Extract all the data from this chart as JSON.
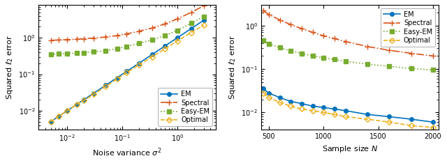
{
  "left": {
    "xlabel": "Noise variance $\\sigma^2$",
    "ylabel": "Squared $\\ell_2$ error",
    "xlim": [
      0.003,
      5.0
    ],
    "ylim": [
      0.003,
      8.0
    ],
    "sigma2": [
      0.005,
      0.007,
      0.01,
      0.015,
      0.02,
      0.03,
      0.05,
      0.08,
      0.12,
      0.2,
      0.35,
      0.6,
      1.0,
      1.8,
      3.0
    ],
    "EM": [
      0.005,
      0.007,
      0.01,
      0.015,
      0.02,
      0.03,
      0.05,
      0.08,
      0.12,
      0.2,
      0.35,
      0.6,
      1.0,
      1.8,
      3.0
    ],
    "Spectral": [
      0.85,
      0.87,
      0.89,
      0.91,
      0.94,
      0.98,
      1.05,
      1.15,
      1.28,
      1.5,
      1.85,
      2.4,
      3.3,
      5.0,
      7.5
    ],
    "EasyEM": [
      0.35,
      0.36,
      0.37,
      0.38,
      0.39,
      0.41,
      0.44,
      0.5,
      0.58,
      0.7,
      0.88,
      1.15,
      1.6,
      2.5,
      3.8
    ],
    "Optimal": [
      0.005,
      0.007,
      0.01,
      0.015,
      0.019,
      0.028,
      0.046,
      0.074,
      0.11,
      0.18,
      0.3,
      0.5,
      0.82,
      1.4,
      2.2
    ]
  },
  "right": {
    "xlabel": "Sample size $N$",
    "ylabel": "Squared $\\ell_2$ error",
    "xlim": [
      430,
      2050
    ],
    "ylim": [
      0.004,
      3.0
    ],
    "N": [
      450,
      500,
      600,
      700,
      800,
      900,
      1000,
      1100,
      1200,
      1400,
      1600,
      1800,
      2000
    ],
    "EM": [
      0.035,
      0.028,
      0.022,
      0.018,
      0.016,
      0.014,
      0.013,
      0.012,
      0.011,
      0.009,
      0.008,
      0.007,
      0.006
    ],
    "Spectral": [
      2.2,
      1.8,
      1.35,
      1.05,
      0.85,
      0.7,
      0.58,
      0.5,
      0.43,
      0.33,
      0.27,
      0.23,
      0.2
    ],
    "EasyEM": [
      0.45,
      0.38,
      0.31,
      0.26,
      0.23,
      0.2,
      0.18,
      0.165,
      0.15,
      0.13,
      0.115,
      0.103,
      0.095
    ],
    "Optimal": [
      0.028,
      0.022,
      0.017,
      0.014,
      0.012,
      0.011,
      0.01,
      0.009,
      0.008,
      0.007,
      0.006,
      0.005,
      0.0045
    ]
  },
  "colors": {
    "EM": "#0072BD",
    "Spectral": "#D95319",
    "EasyEM": "#77AC30",
    "Optimal": "#EDB120"
  },
  "markers": {
    "EM": "o",
    "Spectral": "+",
    "EasyEM": "s",
    "Optimal": "D"
  },
  "linestyles": {
    "EM": "-",
    "Spectral": "-.",
    "EasyEM": ":",
    "Optimal": "--"
  },
  "labels": {
    "EM": "EM",
    "Spectral": "Spectral",
    "EasyEM": "Easy-EM",
    "Optimal": "Optimal"
  }
}
